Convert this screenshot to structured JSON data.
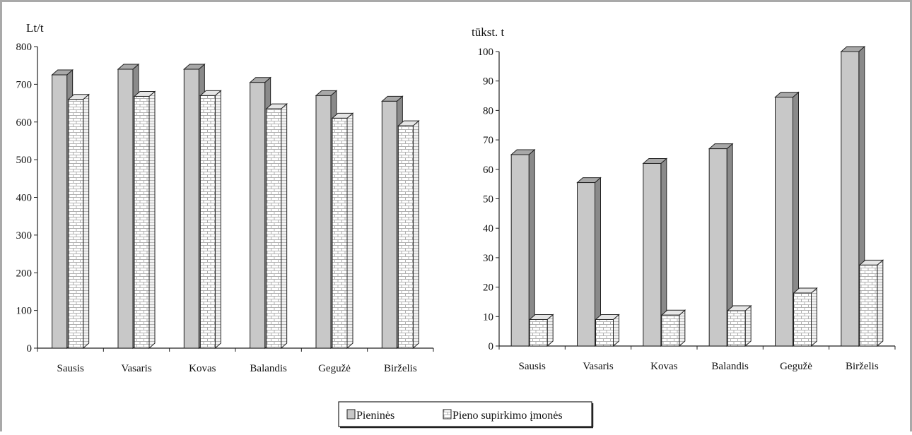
{
  "chart_data": [
    {
      "type": "bar",
      "ylabel": "Lt/t",
      "ylim": [
        0,
        800
      ],
      "yticks": [
        0,
        100,
        200,
        300,
        400,
        500,
        600,
        700,
        800
      ],
      "categories": [
        "Sausis",
        "Vasaris",
        "Kovas",
        "Balandis",
        "Gegužė",
        "Birželis"
      ],
      "series": [
        {
          "name": "Pieninės",
          "values": [
            725,
            740,
            740,
            705,
            670,
            655
          ]
        },
        {
          "name": "Pieno supirkimo įmonės",
          "values": [
            660,
            668,
            670,
            635,
            610,
            590
          ]
        }
      ]
    },
    {
      "type": "bar",
      "ylabel": "tūkst. t",
      "ylim": [
        0,
        100
      ],
      "yticks": [
        0,
        10,
        20,
        30,
        40,
        50,
        60,
        70,
        80,
        90,
        100
      ],
      "categories": [
        "Sausis",
        "Vasaris",
        "Kovas",
        "Balandis",
        "Gegužė",
        "Birželis"
      ],
      "series": [
        {
          "name": "Pieninės",
          "values": [
            65,
            55.5,
            62,
            67,
            84.5,
            100
          ]
        },
        {
          "name": "Pieno supirkimo įmonės",
          "values": [
            9,
            9,
            10.5,
            12,
            18,
            27.5
          ]
        }
      ]
    }
  ],
  "legend": {
    "items": [
      "Pieninės",
      "Pieno supirkimo įmonės"
    ],
    "placement": "bottom-center"
  },
  "colors": {
    "series1_front": "#c8c8c8",
    "series1_side": "#8a8a8a",
    "series1_top": "#a8a8a8",
    "series2_front": "#ffffff",
    "series2_pattern": "#b0b0b0",
    "outline": "#222222",
    "frame": "#a9a9a9"
  }
}
